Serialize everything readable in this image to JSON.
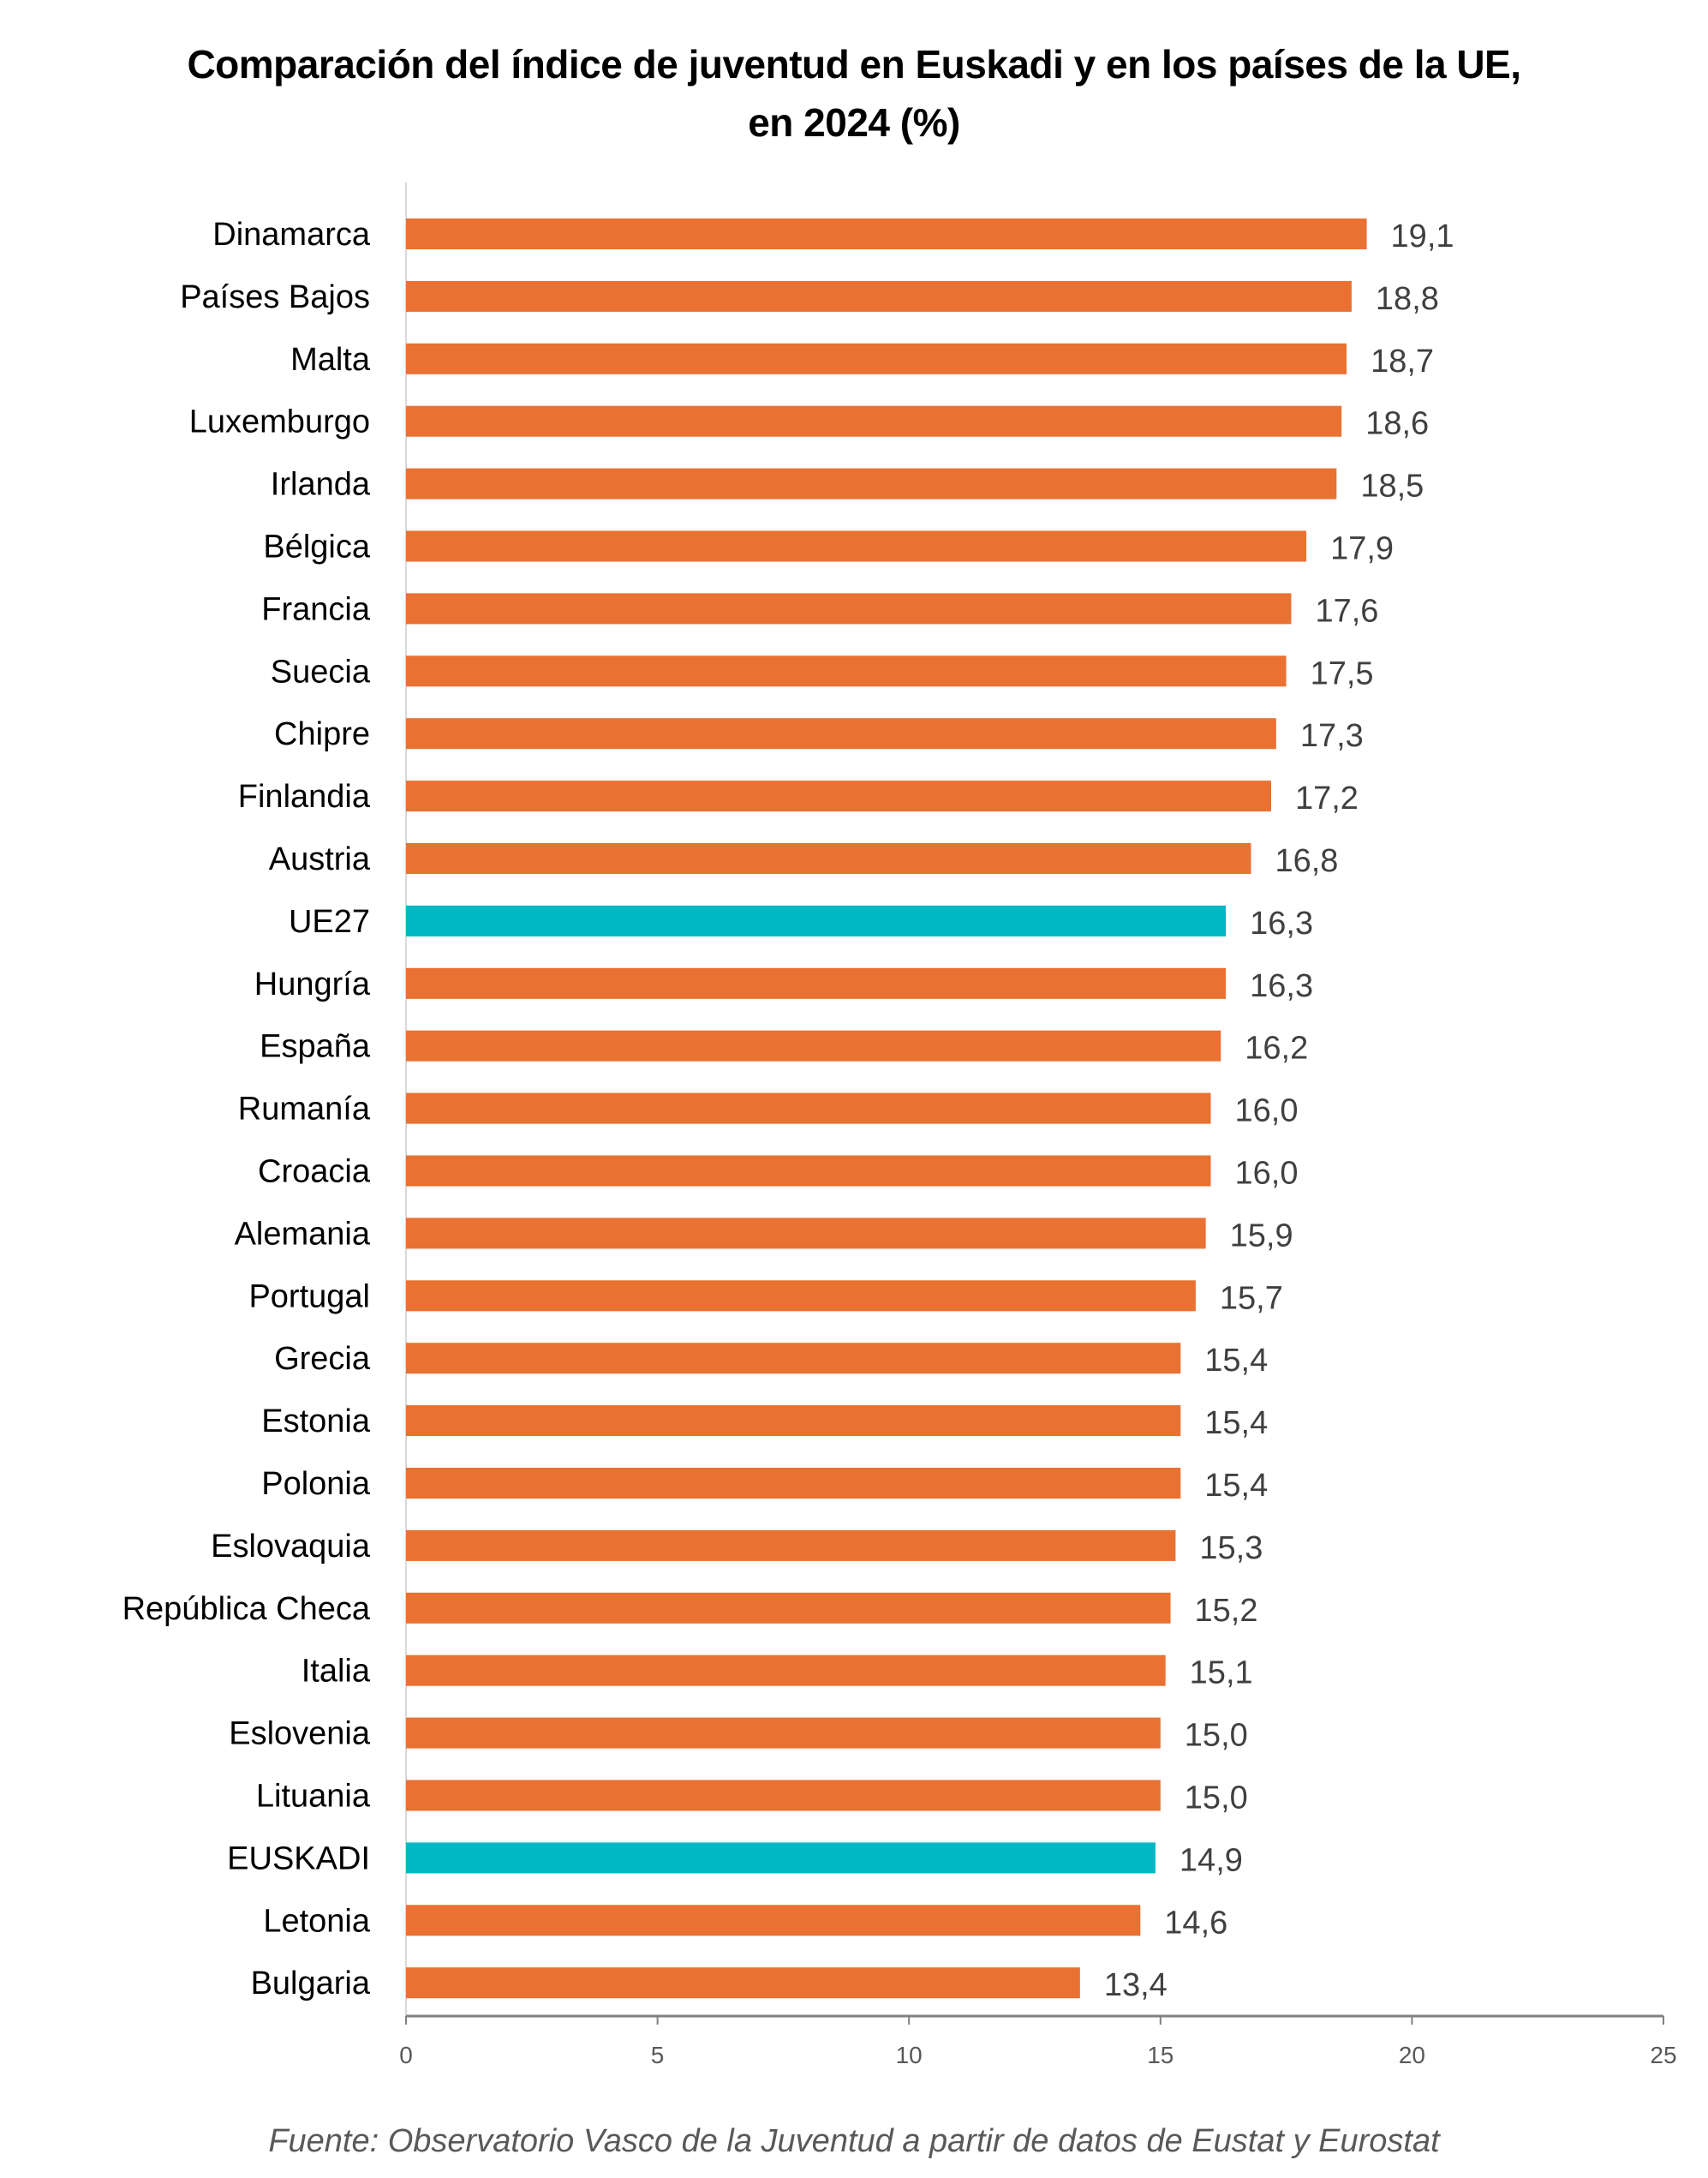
{
  "chart_data": {
    "type": "bar",
    "orientation": "horizontal",
    "title_line1": "Comparación del índice de juventud en Euskadi y en los países de la UE,",
    "title_line2": "en 2024 (%)",
    "categories": [
      "Dinamarca",
      "Países Bajos",
      "Malta",
      "Luxemburgo",
      "Irlanda",
      "Bélgica",
      "Francia",
      "Suecia",
      "Chipre",
      "Finlandia",
      "Austria",
      "UE27",
      "Hungría",
      "España",
      "Rumanía",
      "Croacia",
      "Alemania",
      "Portugal",
      "Grecia",
      "Estonia",
      "Polonia",
      "Eslovaquia",
      "República Checa",
      "Italia",
      "Eslovenia",
      "Lituania",
      "EUSKADI",
      "Letonia",
      "Bulgaria"
    ],
    "values": [
      19.1,
      18.8,
      18.7,
      18.6,
      18.5,
      17.9,
      17.6,
      17.5,
      17.3,
      17.2,
      16.8,
      16.3,
      16.3,
      16.2,
      16.0,
      16.0,
      15.9,
      15.7,
      15.4,
      15.4,
      15.4,
      15.3,
      15.2,
      15.1,
      15.0,
      15.0,
      14.9,
      14.6,
      13.4
    ],
    "data_labels": [
      "19,1",
      "18,8",
      "18,7",
      "18,6",
      "18,5",
      "17,9",
      "17,6",
      "17,5",
      "17,3",
      "17,2",
      "16,8",
      "16,3",
      "16,3",
      "16,2",
      "16,0",
      "16,0",
      "15,9",
      "15,7",
      "15,4",
      "15,4",
      "15,4",
      "15,3",
      "15,2",
      "15,1",
      "15,0",
      "15,0",
      "14,9",
      "14,6",
      "13,4"
    ],
    "highlight": [
      "UE27",
      "EUSKADI"
    ],
    "xlim": [
      0,
      25
    ],
    "xticks": [
      "0",
      "5",
      "10",
      "15",
      "20",
      "25"
    ],
    "xlabel": "",
    "ylabel": "",
    "grid": false,
    "legend": "none",
    "colors": {
      "default": "#E97132",
      "highlight": "#00B7C3",
      "axis": "#808080",
      "text": "#000000",
      "value_text": "#404040"
    }
  },
  "source": "Fuente: Observatorio Vasco de la Juventud a partir de datos de Eustat y Eurostat"
}
